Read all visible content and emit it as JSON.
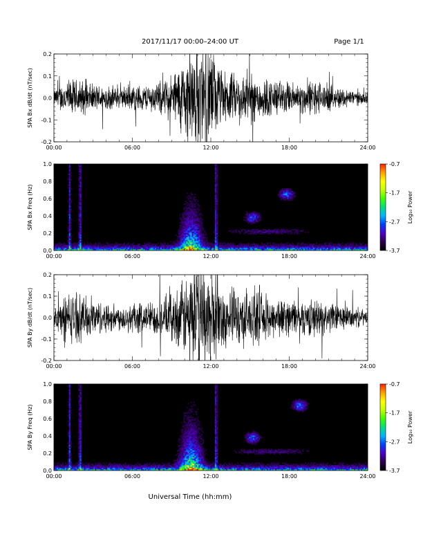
{
  "header": {
    "title": "2017/11/17  00:00–24:00 UT",
    "page": "Page 1/1"
  },
  "x_axis_label": "Universal Time (hh:mm)",
  "colors": {
    "trace": "#000000",
    "background": "#ffffff",
    "colormap": [
      "#000000",
      "#2a0050",
      "#5000c8",
      "#0040ff",
      "#00b4ff",
      "#00e080",
      "#40ff00",
      "#c8ff00",
      "#ffff00",
      "#ffa000",
      "#ff2000"
    ]
  },
  "chart_data": [
    {
      "type": "line",
      "ylabel": "SPA Bx dB/dt (nT/sec)",
      "xlim": [
        0,
        24
      ],
      "ylim": [
        -0.2,
        0.2
      ],
      "x_ticks": [
        "00:00",
        "06:00",
        "12:00",
        "18:00",
        "24:00"
      ],
      "y_ticks": [
        "0.2",
        "0.1",
        "0.0",
        "-0.1",
        "-0.2"
      ],
      "y_tick_values": [
        0.2,
        0.1,
        0.0,
        -0.1,
        -0.2
      ],
      "envelope": {
        "hours": [
          0,
          1,
          2,
          3,
          4,
          5,
          6,
          7,
          8,
          9,
          10,
          10.5,
          11,
          11.5,
          12,
          12.5,
          13,
          14,
          15,
          16,
          17,
          18,
          19,
          20,
          21,
          22,
          23,
          24
        ],
        "amplitude": [
          0.03,
          0.07,
          0.07,
          0.05,
          0.05,
          0.04,
          0.05,
          0.05,
          0.06,
          0.09,
          0.15,
          0.2,
          0.2,
          0.2,
          0.2,
          0.13,
          0.1,
          0.09,
          0.1,
          0.08,
          0.07,
          0.06,
          0.06,
          0.07,
          0.05,
          0.04,
          0.03,
          0.02
        ]
      }
    },
    {
      "type": "heatmap",
      "ylabel": "SPA Bx Freq (Hz)",
      "xlim": [
        0,
        24
      ],
      "ylim": [
        0,
        1.0
      ],
      "x_ticks": [
        "00:00",
        "06:00",
        "12:00",
        "18:00",
        "24:00"
      ],
      "y_ticks": [
        "1.0",
        "0.8",
        "0.6",
        "0.4",
        "0.2",
        "0.0"
      ],
      "y_tick_values": [
        1.0,
        0.8,
        0.6,
        0.4,
        0.2,
        0.0
      ],
      "colorbar": {
        "label": "Log₁₀ Power",
        "ticks": [
          "-0.7",
          "-1.7",
          "-2.7",
          "-3.7"
        ],
        "tick_values": [
          -0.7,
          -1.7,
          -2.7,
          -3.7
        ],
        "range": [
          -3.7,
          -0.7
        ]
      },
      "features": [
        {
          "hour": 1.2,
          "kind": "vertical line"
        },
        {
          "hour": 2.0,
          "kind": "vertical line"
        },
        {
          "hour": 10.5,
          "freq_max": 0.7,
          "kind": "broadband burst"
        },
        {
          "hour": 12.4,
          "kind": "vertical line"
        },
        {
          "hour": 15.2,
          "freq": 0.38,
          "kind": "isolated enhancement"
        },
        {
          "hour": 17.8,
          "freq": 0.65,
          "kind": "weak enhancement"
        }
      ]
    },
    {
      "type": "line",
      "ylabel": "SPA By dB/dt (nT/sec)",
      "xlim": [
        0,
        24
      ],
      "ylim": [
        -0.2,
        0.2
      ],
      "x_ticks": [
        "00:00",
        "06:00",
        "12:00",
        "18:00",
        "24:00"
      ],
      "y_ticks": [
        "0.2",
        "0.1",
        "0.0",
        "-0.1",
        "-0.2"
      ],
      "y_tick_values": [
        0.2,
        0.1,
        0.0,
        -0.1,
        -0.2
      ],
      "envelope": {
        "hours": [
          0,
          1,
          2,
          3,
          4,
          5,
          6,
          7,
          8,
          9,
          10,
          10.5,
          11,
          11.5,
          12,
          12.5,
          13,
          14,
          15,
          16,
          17,
          18,
          19,
          20,
          21,
          22,
          23,
          24
        ],
        "amplitude": [
          0.04,
          0.1,
          0.09,
          0.07,
          0.06,
          0.05,
          0.06,
          0.06,
          0.07,
          0.09,
          0.15,
          0.2,
          0.2,
          0.2,
          0.2,
          0.14,
          0.12,
          0.11,
          0.11,
          0.09,
          0.08,
          0.07,
          0.07,
          0.07,
          0.06,
          0.05,
          0.04,
          0.03
        ]
      }
    },
    {
      "type": "heatmap",
      "ylabel": "SPA By Freq (Hz)",
      "xlim": [
        0,
        24
      ],
      "ylim": [
        0,
        1.0
      ],
      "x_ticks": [
        "00:00",
        "06:00",
        "12:00",
        "18:00",
        "24:00"
      ],
      "y_ticks": [
        "1.0",
        "0.8",
        "0.6",
        "0.4",
        "0.2",
        "0.0"
      ],
      "y_tick_values": [
        1.0,
        0.8,
        0.6,
        0.4,
        0.2,
        0.0
      ],
      "colorbar": {
        "label": "Log₁₀ Power",
        "ticks": [
          "-0.7",
          "-1.7",
          "-2.7",
          "-3.7"
        ],
        "tick_values": [
          -0.7,
          -1.7,
          -2.7,
          -3.7
        ],
        "range": [
          -3.7,
          -0.7
        ]
      },
      "features": [
        {
          "hour": 1.2,
          "kind": "vertical line"
        },
        {
          "hour": 2.0,
          "kind": "vertical line"
        },
        {
          "hour": 10.5,
          "freq_max": 0.8,
          "kind": "broadband burst"
        },
        {
          "hour": 12.4,
          "kind": "vertical line"
        },
        {
          "hour": 15.2,
          "freq": 0.38,
          "kind": "isolated enhancement"
        },
        {
          "hour": 18.8,
          "freq": 0.75,
          "kind": "isolated enhancement"
        }
      ]
    }
  ]
}
